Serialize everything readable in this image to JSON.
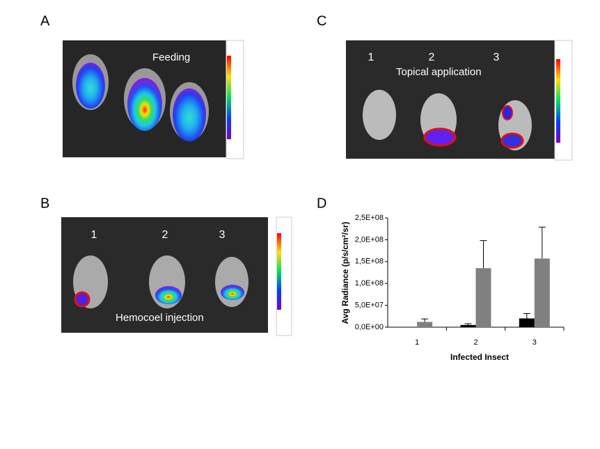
{
  "panels": [
    {
      "label": "A",
      "caption": "Feeding"
    },
    {
      "label": "B",
      "caption": "Hemocoel injection",
      "insects": [
        "1",
        "2",
        "3"
      ]
    },
    {
      "label": "C",
      "caption": "Topical application",
      "insects": [
        "1",
        "2",
        "3"
      ]
    },
    {
      "label": "D"
    }
  ],
  "chart_data": {
    "type": "bar",
    "ylabel": "Avg Radiance (p/s/cm²/sr)",
    "xlabel": "Infected Insect",
    "categories": [
      "1",
      "2",
      "3"
    ],
    "series": [
      {
        "color": "#000000",
        "values": [
          0,
          5000000,
          20000000
        ],
        "errors": [
          null,
          3000000,
          11000000
        ]
      },
      {
        "color": "#808080",
        "values": [
          12000000,
          135000000,
          157000000
        ],
        "errors": [
          7000000,
          63000000,
          72000000
        ]
      }
    ],
    "ylim": [
      0,
      250000000
    ],
    "yticks": [
      {
        "value": 0,
        "label": "0,0E+00"
      },
      {
        "value": 50000000,
        "label": "5,0E+07"
      },
      {
        "value": 100000000,
        "label": "1,0E+08"
      },
      {
        "value": 150000000,
        "label": "1,5E+08"
      },
      {
        "value": 200000000,
        "label": "2,0E+08"
      },
      {
        "value": 250000000,
        "label": "2,5E+08"
      }
    ],
    "grid": false
  }
}
